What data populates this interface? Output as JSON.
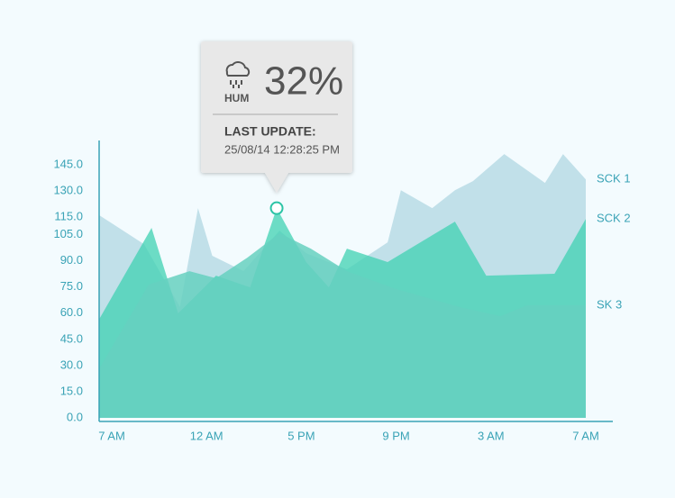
{
  "chart_data": {
    "type": "area",
    "xlim": [
      -0.13,
      5.29
    ],
    "xticks": [
      {
        "value": 0,
        "label": "7 AM"
      },
      {
        "value": 1,
        "label": "12 AM"
      },
      {
        "value": 2,
        "label": "5 PM"
      },
      {
        "value": 3,
        "label": "9 PM"
      },
      {
        "value": 4,
        "label": "3  AM"
      },
      {
        "value": 5,
        "label": "7 AM"
      }
    ],
    "ylim": [
      0,
      159
    ],
    "yticks": [
      {
        "value": 0,
        "label": "0.0"
      },
      {
        "value": 15,
        "label": "15.0"
      },
      {
        "value": 30,
        "label": "30.0"
      },
      {
        "value": 45,
        "label": "45.0"
      },
      {
        "value": 60,
        "label": "60.0"
      },
      {
        "value": 75,
        "label": "75.0"
      },
      {
        "value": 90,
        "label": "90.0"
      },
      {
        "value": 105,
        "label": "105.0"
      },
      {
        "value": 115,
        "label": "115.0"
      },
      {
        "value": 130,
        "label": "130.0"
      },
      {
        "value": 145,
        "label": "145.0"
      }
    ],
    "series": [
      {
        "name": "SCK 1",
        "color": "#b7dbe5",
        "x": [
          -0.13,
          0.34,
          0.72,
          0.91,
          1.06,
          1.39,
          1.77,
          2.05,
          2.48,
          2.91,
          3.05,
          3.38,
          3.62,
          3.81,
          4.14,
          4.57,
          4.76,
          5.0
        ],
        "values": [
          116.1,
          99.6,
          63.5,
          120.2,
          92.9,
          84.1,
          107.3,
          94.4,
          85.1,
          100.6,
          130.5,
          120.2,
          130.5,
          135.7,
          151.2,
          134.7,
          151.2,
          136.7
        ]
      },
      {
        "name": "SCK 2",
        "color": "#3fd1b2",
        "x": [
          -0.13,
          0.42,
          0.7,
          1.1,
          1.46,
          1.74,
          2.05,
          2.29,
          2.48,
          2.91,
          3.62,
          3.95,
          4.67,
          5.0
        ],
        "values": [
          56.8,
          108.9,
          59.9,
          81.5,
          74.8,
          120.2,
          89.3,
          74.8,
          97.0,
          89.3,
          112.5,
          81.5,
          82.6,
          114.0
        ]
      },
      {
        "name": "SK 3",
        "color": "#66d0c0",
        "x": [
          -0.13,
          0.39,
          0.82,
          1.1,
          1.43,
          1.77,
          2.1,
          2.48,
          3.0,
          3.67,
          4.1,
          4.38,
          5.0
        ],
        "values": [
          28.4,
          76.4,
          84.1,
          80.0,
          91.8,
          105.8,
          97.0,
          84.1,
          73.8,
          63.5,
          58.3,
          64.5,
          64.5
        ]
      }
    ],
    "tooltip": {
      "label": "HUM",
      "value": "32%",
      "title": "LAST UPDATE:",
      "timestamp": "25/08/14 12:28:25 PM"
    }
  }
}
